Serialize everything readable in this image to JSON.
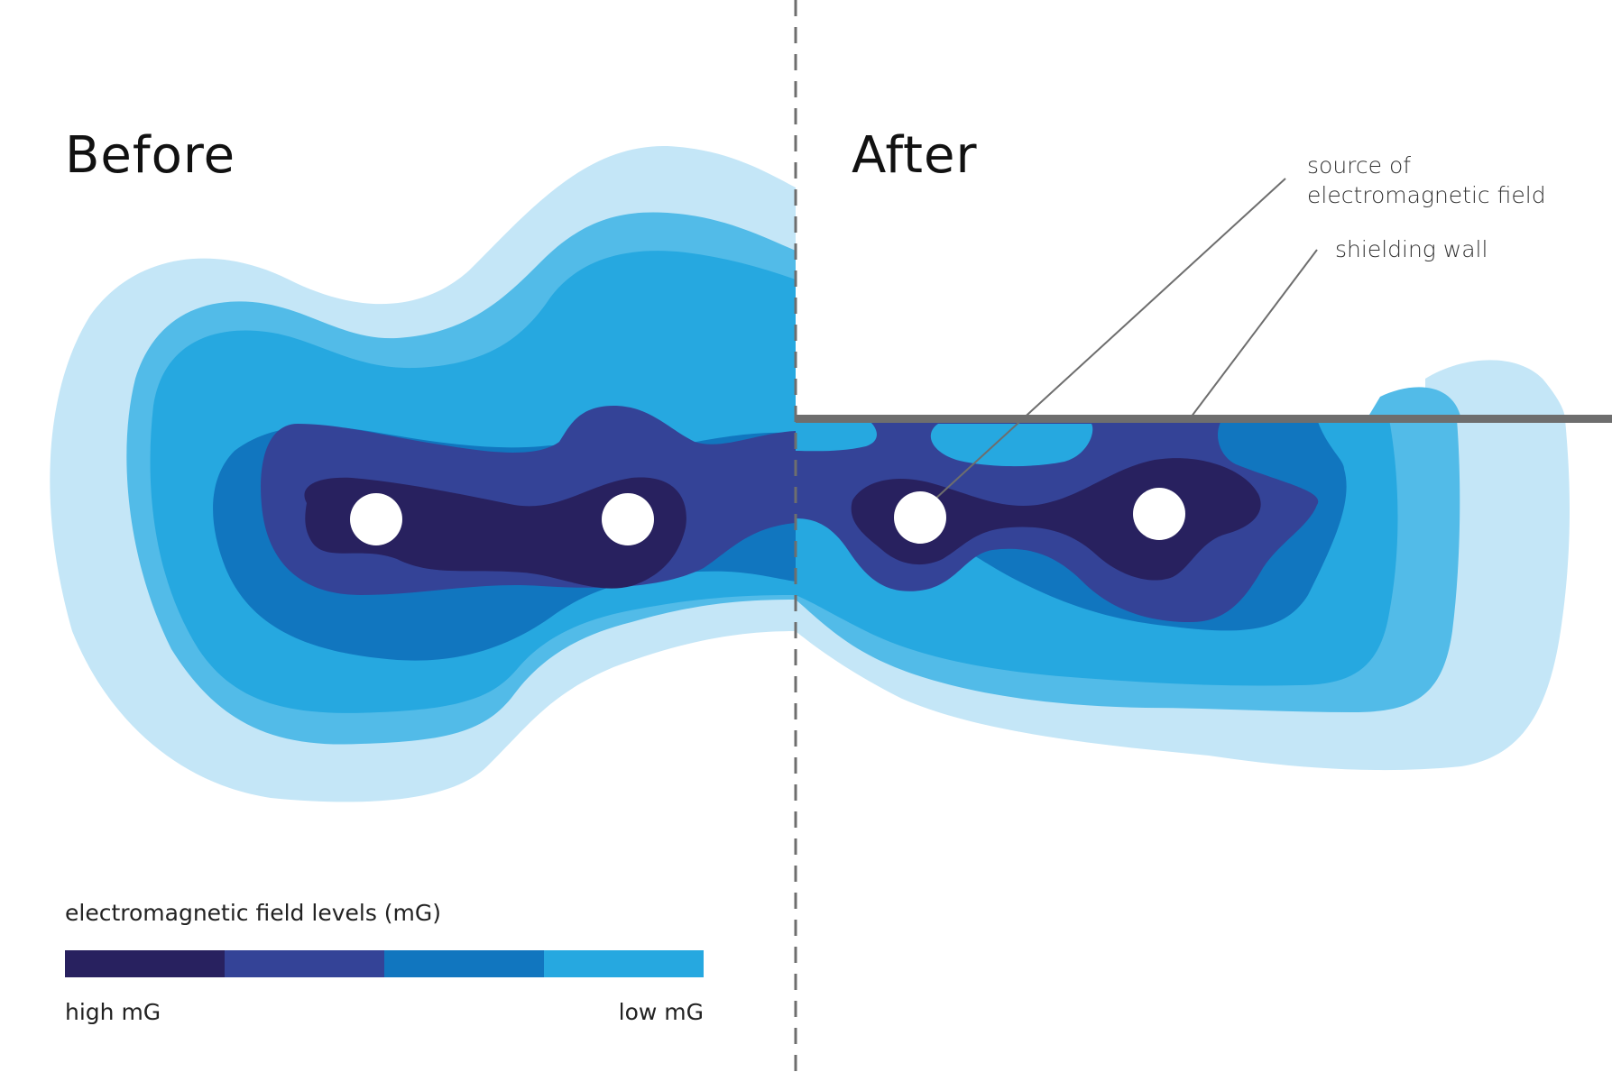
{
  "headings": {
    "before": "Before",
    "after": "After"
  },
  "callouts": {
    "source": [
      "source of",
      "electromagnetic field"
    ],
    "shielding_wall": "shielding wall"
  },
  "legend": {
    "title": "electromagnetic field levels (mG)",
    "high_label": "high mG",
    "low_label": "low mG",
    "levels": [
      {
        "color": "#28215f"
      },
      {
        "color": "#344397"
      },
      {
        "color": "#1176bf"
      },
      {
        "color": "#26a8e0"
      }
    ]
  },
  "colors": {
    "level_1_highest": "#28215f",
    "level_2": "#344397",
    "level_3": "#1176bf",
    "level_4": "#26a8e0",
    "level_5": "#52bbe8",
    "level_6_lowest": "#c4e6f7",
    "source": "#ffffff",
    "wall": "#6e6e6e",
    "divider": "#6e6e6e",
    "leader_line": "#6e6e6e"
  }
}
